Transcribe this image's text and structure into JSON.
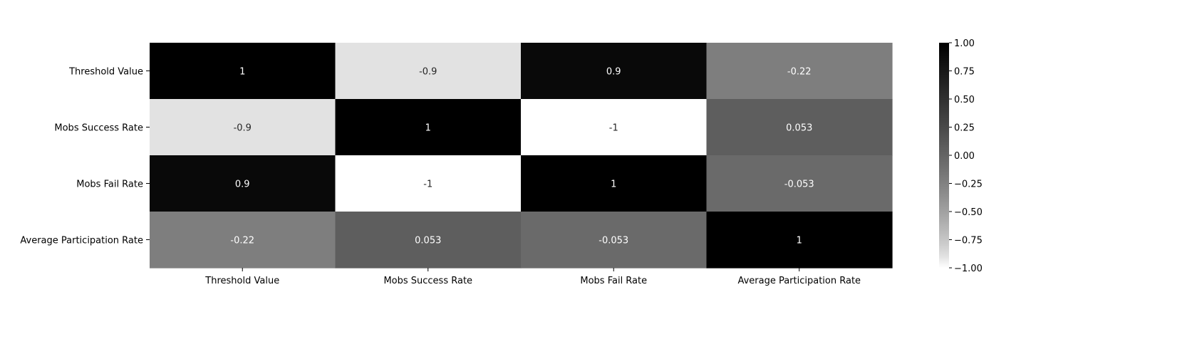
{
  "chart_data": {
    "type": "heatmap",
    "title": "",
    "xlabel": "",
    "ylabel": "",
    "x_categories": [
      "Threshold Value",
      "Mobs Success Rate",
      "Mobs Fail Rate",
      "Average Participation Rate"
    ],
    "y_categories": [
      "Threshold Value",
      "Mobs Success Rate",
      "Mobs Fail Rate",
      "Average Participation Rate"
    ],
    "values": [
      [
        1,
        -0.9,
        0.9,
        -0.22
      ],
      [
        -0.9,
        1,
        -1,
        0.053
      ],
      [
        0.9,
        -1,
        1,
        -0.053
      ],
      [
        -0.22,
        0.053,
        -0.053,
        1
      ]
    ],
    "cell_labels": [
      [
        "1",
        "-0.9",
        "0.9",
        "-0.22"
      ],
      [
        "-0.9",
        "1",
        "-1",
        "0.053"
      ],
      [
        "0.9",
        "-1",
        "1",
        "-0.053"
      ],
      [
        "-0.22",
        "0.053",
        "-0.053",
        "1"
      ]
    ],
    "colormap": "Greys",
    "color_low": "#ffffff",
    "color_high": "#000000",
    "vmin": -1,
    "vmax": 1,
    "colorbar": {
      "ticks": [
        1.0,
        0.75,
        0.5,
        0.25,
        0.0,
        -0.25,
        -0.5,
        -0.75,
        -1.0
      ],
      "tick_labels": [
        "1.00",
        "0.75",
        "0.50",
        "0.25",
        "0.00",
        "−0.25",
        "−0.50",
        "−0.75",
        "−1.00"
      ]
    },
    "annotations_on": true,
    "grid": false,
    "legend": "colorbar-right"
  }
}
